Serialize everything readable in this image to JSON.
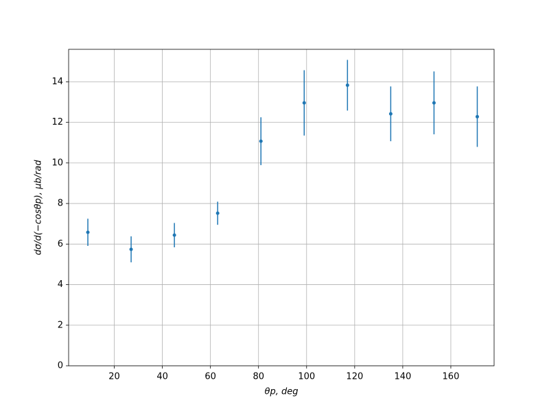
{
  "chart_data": {
    "type": "errorbar",
    "x_label": "θp, deg",
    "y_label": "dσ/d(−cosθp), μb/rad",
    "x": [
      9,
      27,
      45,
      63,
      81,
      99,
      117,
      135,
      153,
      171
    ],
    "series": [
      {
        "color": "#1f77b4",
        "values": [
          6.58,
          5.74,
          6.44,
          7.52,
          11.07,
          12.96,
          13.83,
          12.42,
          12.96,
          12.28
        ],
        "errors": [
          0.67,
          0.64,
          0.6,
          0.57,
          1.18,
          1.61,
          1.25,
          1.35,
          1.55,
          1.49
        ]
      }
    ],
    "xlim": [
      1,
      178
    ],
    "ylim": [
      0,
      15.6
    ],
    "xticks": [
      20,
      40,
      60,
      80,
      100,
      120,
      140,
      160
    ],
    "yticks": [
      0,
      2,
      4,
      6,
      8,
      10,
      12,
      14
    ],
    "grid": true
  }
}
